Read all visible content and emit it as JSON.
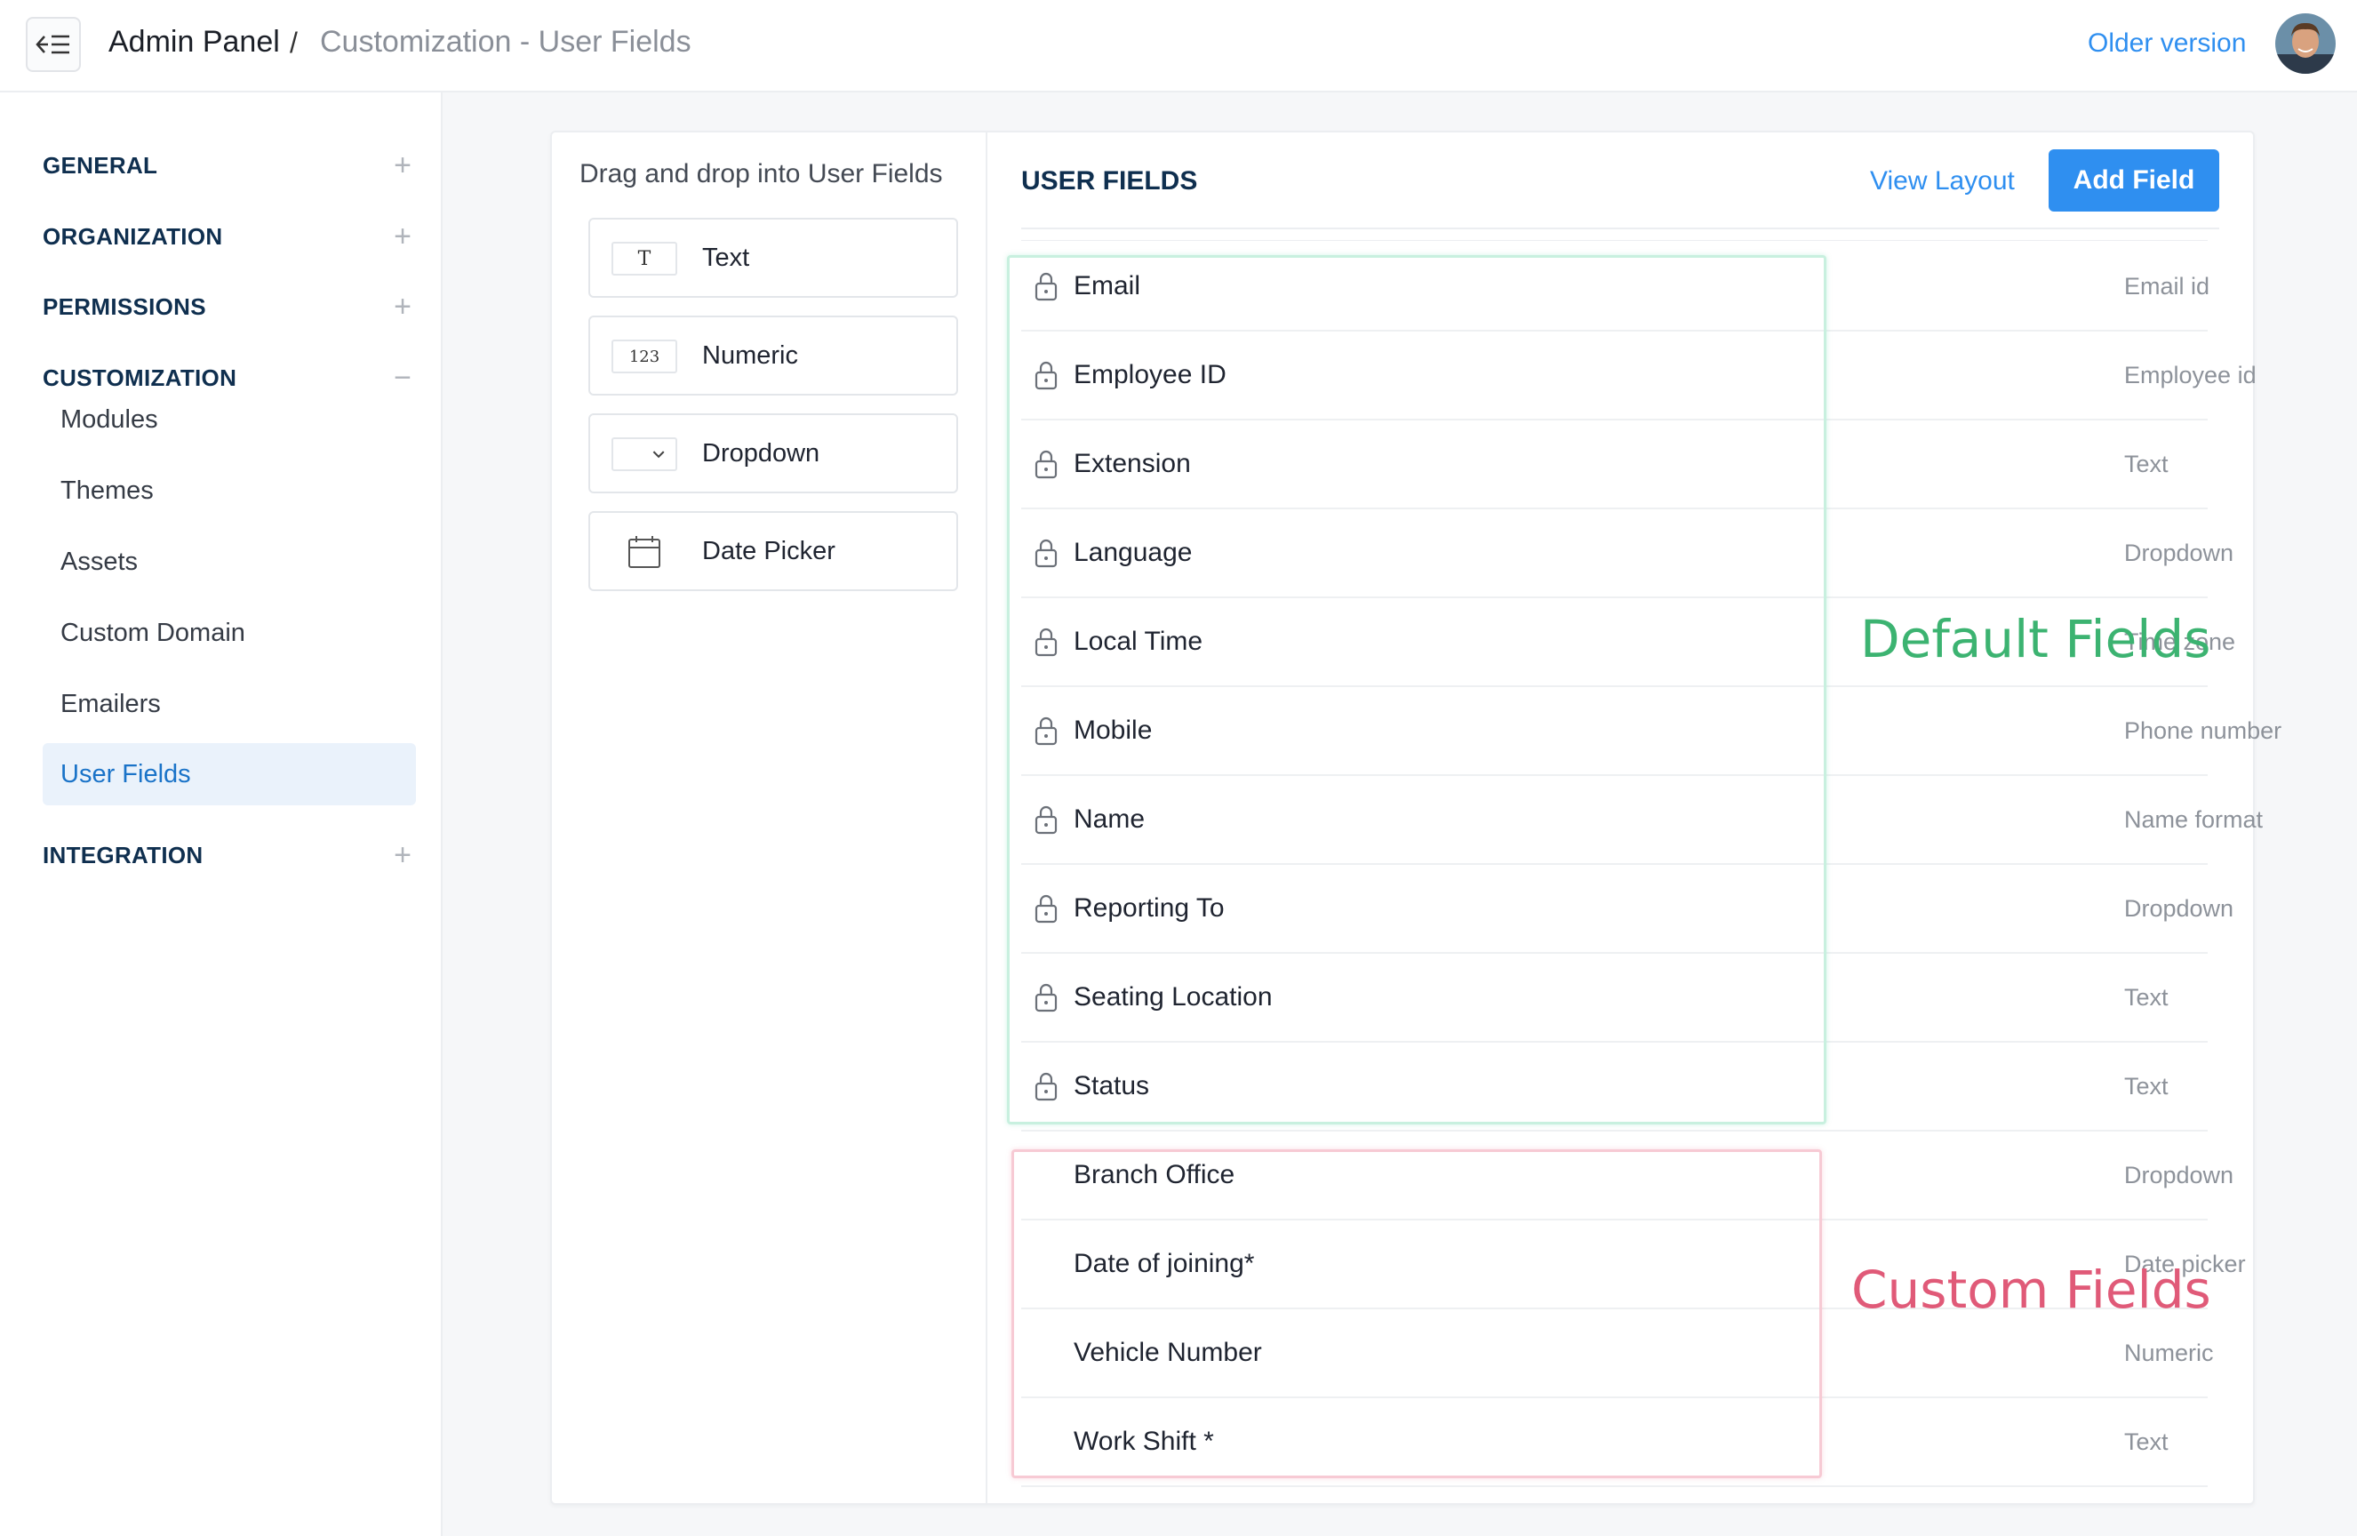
{
  "header": {
    "breadcrumb_root": "Admin Panel",
    "breadcrumb_separator": "/",
    "breadcrumb_section": "Customization - User Fields",
    "older_version_link": "Older version"
  },
  "sidebar": {
    "sections": [
      {
        "label": "GENERAL",
        "toggle": "+"
      },
      {
        "label": "ORGANIZATION",
        "toggle": "+"
      },
      {
        "label": "PERMISSIONS",
        "toggle": "+"
      },
      {
        "label": "CUSTOMIZATION",
        "toggle": "−"
      },
      {
        "label": "INTEGRATION",
        "toggle": "+"
      }
    ],
    "customization_items": [
      "Modules",
      "Themes",
      "Assets",
      "Custom Domain",
      "Emailers",
      "User Fields"
    ],
    "active_item": "User Fields"
  },
  "palette": {
    "title": "Drag and drop into User Fields",
    "items": [
      {
        "label": "Text",
        "icon": "text-type-icon",
        "glyph": "T"
      },
      {
        "label": "Numeric",
        "icon": "numeric-type-icon",
        "glyph": "123"
      },
      {
        "label": "Dropdown",
        "icon": "dropdown-type-icon",
        "glyph": ""
      },
      {
        "label": "Date Picker",
        "icon": "calendar-icon",
        "glyph": ""
      }
    ]
  },
  "user_fields": {
    "title": "USER FIELDS",
    "view_layout_label": "View Layout",
    "add_field_label": "Add Field",
    "default_fields": [
      {
        "name": "Email",
        "type": "Email id"
      },
      {
        "name": "Employee ID",
        "type": "Employee id"
      },
      {
        "name": "Extension",
        "type": "Text"
      },
      {
        "name": "Language",
        "type": "Dropdown"
      },
      {
        "name": "Local Time",
        "type": "Time zone"
      },
      {
        "name": "Mobile",
        "type": "Phone number"
      },
      {
        "name": "Name",
        "type": "Name format"
      },
      {
        "name": "Reporting To",
        "type": "Dropdown"
      },
      {
        "name": "Seating Location",
        "type": "Text"
      },
      {
        "name": "Status",
        "type": "Text"
      }
    ],
    "custom_fields": [
      {
        "name": "Branch Office",
        "type": "Dropdown"
      },
      {
        "name": "Date of joining*",
        "type": "Date picker"
      },
      {
        "name": "Vehicle Number",
        "type": "Numeric"
      },
      {
        "name": "Work Shift *",
        "type": "Text"
      }
    ],
    "default_group_label": "Default Fields",
    "custom_group_label": "Custom Fields"
  },
  "colors": {
    "accent": "#2f8ff0",
    "default_group": "#3cb371",
    "custom_group": "#e05a78"
  }
}
